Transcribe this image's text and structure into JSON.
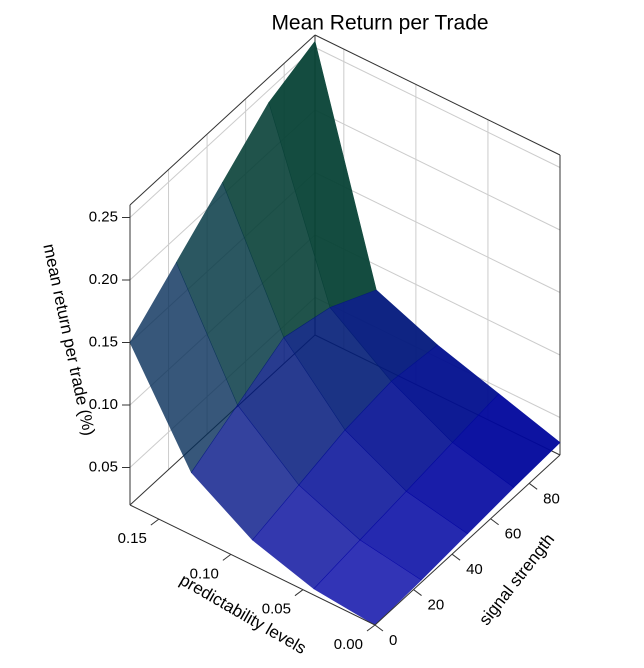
{
  "chart_data": {
    "type": "surface",
    "title": "Mean Return per Trade",
    "x_label": "predictability levels",
    "y_label": "signal strength",
    "z_label": "mean return per trade (%)",
    "x": [
      0,
      0.0425,
      0.085,
      0.1275,
      0.17
    ],
    "y": [
      0,
      24,
      48,
      72,
      96
    ],
    "z": [
      [
        0.02,
        0.022,
        0.025,
        0.028,
        0.03
      ],
      [
        0.025,
        0.03,
        0.035,
        0.04,
        0.045
      ],
      [
        0.04,
        0.05,
        0.06,
        0.065,
        0.06
      ],
      [
        0.07,
        0.09,
        0.11,
        0.1,
        0.08
      ],
      [
        0.15,
        0.18,
        0.21,
        0.24,
        0.255
      ]
    ],
    "xlim": [
      0,
      0.17
    ],
    "ylim": [
      0,
      96
    ],
    "zlim": [
      0.02,
      0.26
    ],
    "xticks": [
      {
        "value": 0,
        "label": "0.00"
      },
      0.05,
      {
        "value": 0.1,
        "label": "0.10"
      },
      0.15
    ],
    "yticks": [
      0,
      20,
      40,
      60,
      80
    ],
    "zticks": [
      0.05,
      {
        "value": 0.1,
        "label": "0.10"
      },
      0.15,
      {
        "value": 0.2,
        "label": "0.20"
      },
      0.25
    ],
    "colors": [
      "#0000a8",
      "#0b5c0b"
    ],
    "grid": true
  }
}
